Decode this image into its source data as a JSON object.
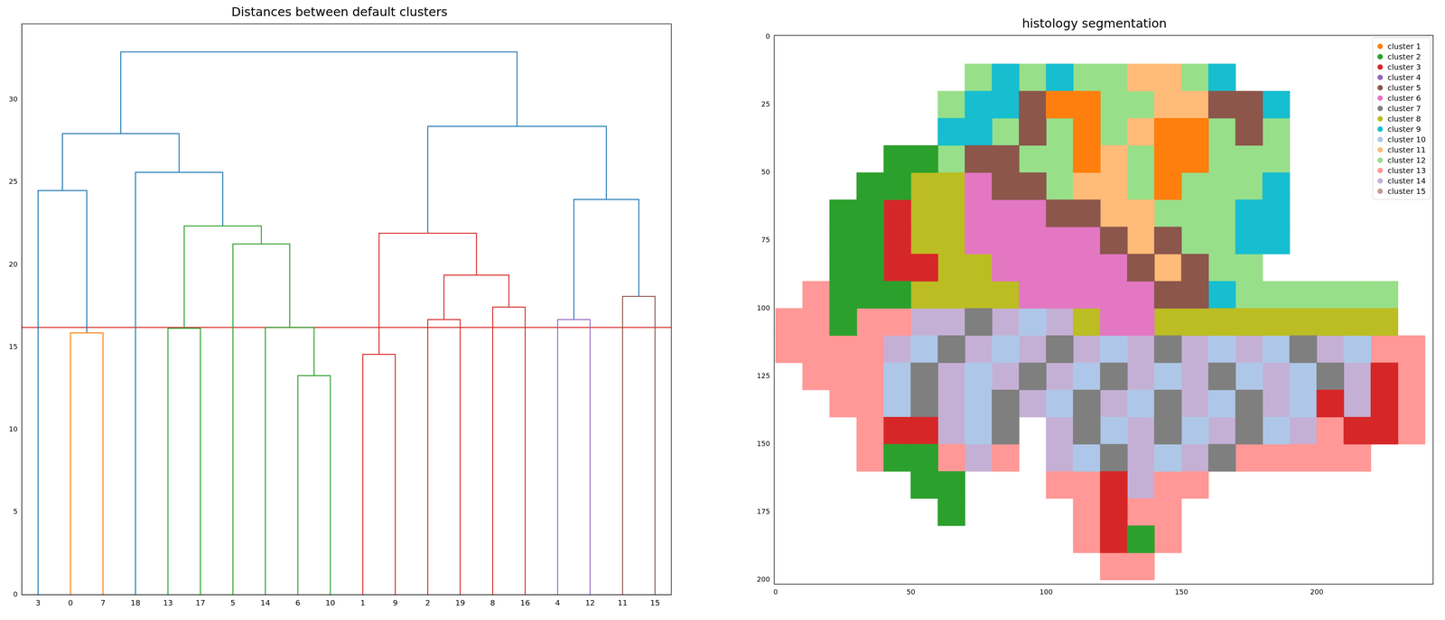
{
  "chart_data": [
    {
      "type": "dendrogram",
      "title": "Distances between default clusters",
      "leaves": [
        "3",
        "0",
        "7",
        "18",
        "13",
        "17",
        "5",
        "14",
        "6",
        "10",
        "1",
        "9",
        "2",
        "19",
        "8",
        "16",
        "4",
        "12",
        "11",
        "15"
      ],
      "merges": [
        {
          "children": [
            6,
            10
          ],
          "height": 13.28,
          "color": "#2ca02c"
        },
        {
          "children": [
            1,
            9
          ],
          "height": 14.57,
          "color": "#d62728"
        },
        {
          "children": [
            0,
            7
          ],
          "height": 15.87,
          "color": "#ff7f0e"
        },
        {
          "children": [
            13,
            17
          ],
          "height": 16.15,
          "color": "#2ca02c"
        },
        {
          "children": [
            14,
            20
          ],
          "height": 16.2,
          "color": "#2ca02c"
        },
        {
          "children": [
            2,
            19
          ],
          "height": 16.68,
          "color": "#d62728"
        },
        {
          "children": [
            4,
            12
          ],
          "height": 16.68,
          "color": "#9467bd"
        },
        {
          "children": [
            8,
            16
          ],
          "height": 17.43,
          "color": "#d62728"
        },
        {
          "children": [
            11,
            15
          ],
          "height": 18.08,
          "color": "#8c564b"
        },
        {
          "children": [
            25,
            27
          ],
          "height": 19.37,
          "color": "#d62728"
        },
        {
          "children": [
            5,
            24
          ],
          "height": 21.26,
          "color": "#2ca02c"
        },
        {
          "children": [
            21,
            29
          ],
          "height": 21.91,
          "color": "#d62728"
        },
        {
          "children": [
            23,
            30
          ],
          "height": 22.35,
          "color": "#2ca02c"
        },
        {
          "children": [
            26,
            28
          ],
          "height": 23.96,
          "color": "#1f77b4"
        },
        {
          "children": [
            3,
            22
          ],
          "height": 24.5,
          "color": "#1f77b4"
        },
        {
          "children": [
            18,
            32
          ],
          "height": 25.6,
          "color": "#1f77b4"
        },
        {
          "children": [
            34,
            35
          ],
          "height": 27.95,
          "color": "#1f77b4"
        },
        {
          "children": [
            31,
            33
          ],
          "height": 28.39,
          "color": "#1f77b4"
        },
        {
          "children": [
            36,
            37
          ],
          "height": 32.9,
          "color": "#1f77b4"
        }
      ],
      "threshold": {
        "value": 16.2,
        "color": "#d62728"
      },
      "xlim": [
        0,
        200
      ],
      "ylim": [
        0,
        34.6
      ],
      "yticks": [
        0,
        5,
        10,
        15,
        20,
        25,
        30
      ],
      "grid": false
    },
    {
      "type": "segmentation",
      "title": "histology segmentation",
      "xlim": [
        -0.5,
        243
      ],
      "ylim": [
        201.5,
        -0.5
      ],
      "xticks": [
        0,
        50,
        100,
        150,
        200
      ],
      "yticks": [
        0,
        25,
        50,
        75,
        100,
        125,
        150,
        175,
        200
      ],
      "grid": false,
      "legend": "upper right",
      "cell_size": 10,
      "series": [
        {
          "name": "cluster 1",
          "color": "#ff7f0e"
        },
        {
          "name": "cluster 2",
          "color": "#2ca02c"
        },
        {
          "name": "cluster 3",
          "color": "#d62728"
        },
        {
          "name": "cluster 4",
          "color": "#9467bd"
        },
        {
          "name": "cluster 5",
          "color": "#8c564b"
        },
        {
          "name": "cluster 6",
          "color": "#e377c2"
        },
        {
          "name": "cluster 7",
          "color": "#7f7f7f"
        },
        {
          "name": "cluster 8",
          "color": "#bcbd22"
        },
        {
          "name": "cluster 9",
          "color": "#17becf"
        },
        {
          "name": "cluster 10",
          "color": "#aec7e8"
        },
        {
          "name": "cluster 11",
          "color": "#ffbb78"
        },
        {
          "name": "cluster 12",
          "color": "#98df8a"
        },
        {
          "name": "cluster 13",
          "color": "#ff9896"
        },
        {
          "name": "cluster 14",
          "color": "#c5b0d5"
        },
        {
          "name": "cluster 15",
          "color": "#c49c94"
        }
      ],
      "cells": [
        [
          null,
          null,
          null,
          null,
          null,
          null,
          null,
          null,
          null,
          null,
          null,
          null,
          null,
          null,
          null,
          null,
          null,
          null,
          null,
          null,
          null,
          null,
          null,
          null
        ],
        [
          null,
          null,
          null,
          null,
          null,
          null,
          null,
          12,
          9,
          12,
          9,
          12,
          12,
          11,
          11,
          12,
          9,
          null,
          null,
          null,
          null,
          null,
          null,
          null
        ],
        [
          null,
          null,
          null,
          null,
          null,
          null,
          12,
          9,
          9,
          5,
          1,
          1,
          12,
          12,
          11,
          11,
          5,
          5,
          9,
          null,
          null,
          null,
          null,
          null
        ],
        [
          null,
          null,
          null,
          null,
          null,
          null,
          9,
          9,
          12,
          5,
          12,
          1,
          12,
          11,
          1,
          1,
          12,
          5,
          12,
          null,
          null,
          null,
          null,
          null
        ],
        [
          null,
          null,
          null,
          null,
          2,
          2,
          12,
          5,
          5,
          12,
          12,
          1,
          11,
          12,
          1,
          1,
          12,
          12,
          12,
          null,
          null,
          null,
          null,
          null
        ],
        [
          null,
          null,
          null,
          2,
          2,
          8,
          8,
          6,
          5,
          5,
          12,
          11,
          11,
          12,
          1,
          12,
          12,
          12,
          9,
          null,
          null,
          null,
          null,
          null
        ],
        [
          null,
          null,
          2,
          2,
          3,
          8,
          8,
          6,
          6,
          6,
          5,
          5,
          11,
          11,
          12,
          12,
          12,
          9,
          9,
          null,
          null,
          null,
          null,
          null
        ],
        [
          null,
          null,
          2,
          2,
          3,
          8,
          8,
          6,
          6,
          6,
          6,
          6,
          5,
          11,
          5,
          12,
          12,
          9,
          9,
          null,
          null,
          null,
          null,
          null
        ],
        [
          null,
          null,
          2,
          2,
          3,
          3,
          8,
          8,
          6,
          6,
          6,
          6,
          6,
          5,
          11,
          5,
          12,
          12,
          null,
          null,
          null,
          null,
          null,
          null
        ],
        [
          null,
          13,
          2,
          2,
          2,
          8,
          8,
          8,
          8,
          6,
          6,
          6,
          6,
          6,
          5,
          5,
          9,
          12,
          12,
          12,
          12,
          12,
          12,
          null
        ],
        [
          13,
          13,
          2,
          13,
          13,
          14,
          14,
          7,
          14,
          10,
          14,
          8,
          6,
          6,
          8,
          8,
          8,
          8,
          8,
          8,
          8,
          8,
          8,
          null
        ],
        [
          13,
          13,
          13,
          13,
          14,
          10,
          7,
          14,
          10,
          14,
          7,
          14,
          10,
          14,
          7,
          14,
          10,
          14,
          10,
          7,
          14,
          10,
          13,
          13
        ],
        [
          null,
          13,
          13,
          13,
          10,
          7,
          14,
          10,
          14,
          7,
          14,
          10,
          7,
          14,
          10,
          14,
          7,
          10,
          14,
          10,
          7,
          14,
          3,
          13
        ],
        [
          null,
          null,
          13,
          13,
          10,
          7,
          14,
          10,
          7,
          14,
          10,
          7,
          14,
          10,
          7,
          14,
          10,
          7,
          14,
          10,
          3,
          14,
          3,
          13
        ],
        [
          null,
          null,
          null,
          13,
          3,
          3,
          14,
          10,
          7,
          null,
          14,
          7,
          10,
          14,
          7,
          10,
          14,
          7,
          10,
          14,
          13,
          3,
          3,
          13
        ],
        [
          null,
          null,
          null,
          13,
          2,
          2,
          13,
          14,
          13,
          null,
          14,
          10,
          7,
          14,
          10,
          14,
          7,
          13,
          13,
          13,
          13,
          13,
          null,
          null
        ],
        [
          null,
          null,
          null,
          null,
          null,
          2,
          2,
          null,
          null,
          null,
          13,
          13,
          3,
          14,
          13,
          13,
          null,
          null,
          null,
          null,
          null,
          null,
          null,
          null
        ],
        [
          null,
          null,
          null,
          null,
          null,
          null,
          2,
          null,
          null,
          null,
          null,
          13,
          3,
          13,
          13,
          null,
          null,
          null,
          null,
          null,
          null,
          null,
          null,
          null
        ],
        [
          null,
          null,
          null,
          null,
          null,
          null,
          null,
          null,
          null,
          null,
          null,
          13,
          3,
          2,
          13,
          null,
          null,
          null,
          null,
          null,
          null,
          null,
          null,
          null
        ],
        [
          null,
          null,
          null,
          null,
          null,
          null,
          null,
          null,
          null,
          null,
          null,
          null,
          13,
          13,
          null,
          null,
          null,
          null,
          null,
          null,
          null,
          null,
          null,
          null
        ]
      ]
    }
  ]
}
